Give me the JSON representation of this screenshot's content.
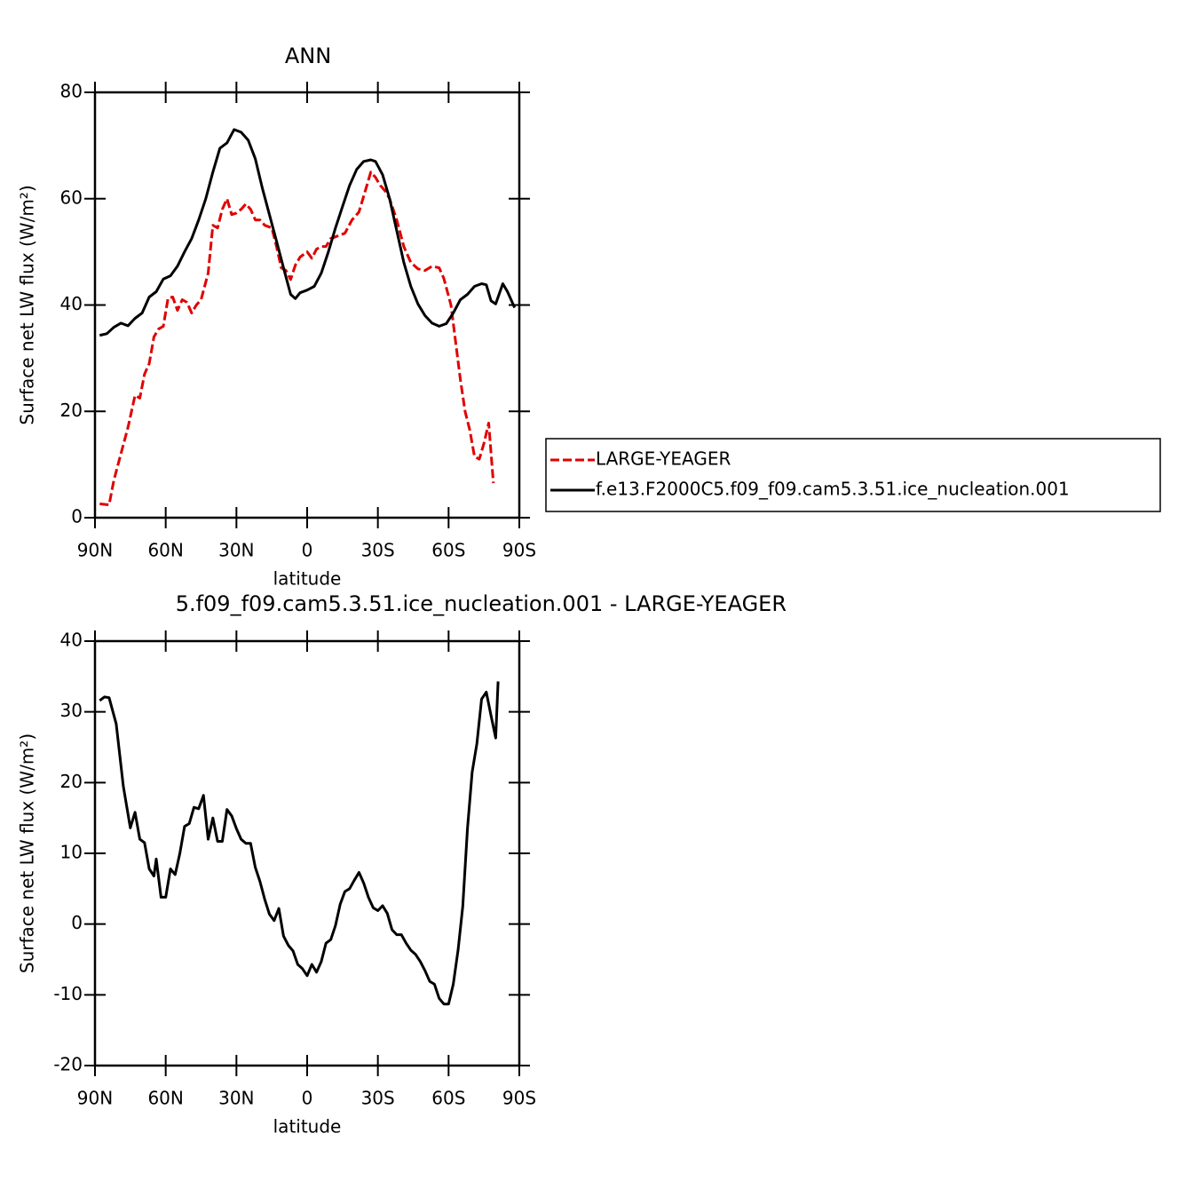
{
  "chart_data": [
    {
      "type": "line",
      "title": "ANN",
      "xlabel": "latitude",
      "ylabel": "Surface net LW flux (W/m²)",
      "xlim": [
        90,
        -90
      ],
      "xticks": [
        {
          "value": 90,
          "label": "90N"
        },
        {
          "value": 60,
          "label": "60N"
        },
        {
          "value": 30,
          "label": "30N"
        },
        0,
        {
          "value": -30,
          "label": "30S"
        },
        {
          "value": -60,
          "label": "60S"
        },
        {
          "value": -90,
          "label": "90S"
        }
      ],
      "ylim": [
        0,
        80
      ],
      "yticks": [
        0,
        20,
        40,
        60,
        80
      ],
      "legend": "right",
      "series": [
        {
          "name": "LARGE-YEAGER",
          "color": "#e00000",
          "linestyle": "dashed",
          "x": [
            88,
            86,
            84,
            82,
            79,
            76,
            73,
            71,
            69,
            67,
            65,
            63,
            61,
            59,
            57,
            55,
            53,
            51,
            49,
            47,
            45,
            42,
            40,
            38,
            36,
            34,
            32,
            30,
            28,
            26,
            24,
            22,
            20,
            18,
            15,
            13,
            11,
            9,
            7,
            5,
            3,
            0,
            -2,
            -4,
            -6,
            -8,
            -10,
            -13,
            -16,
            -19,
            -22,
            -25,
            -27,
            -29,
            -31,
            -33,
            -35,
            -38,
            -41,
            -44,
            -47,
            -50,
            -53,
            -56,
            -58,
            -61,
            -63,
            -65,
            -67,
            -69,
            -71,
            -73,
            -75,
            -77,
            -79
          ],
          "values": [
            2.6,
            2.5,
            2.4,
            7,
            12,
            17,
            23,
            22.5,
            27,
            29,
            34,
            35.5,
            36,
            41.3,
            41.5,
            39,
            41,
            40.5,
            38.5,
            40,
            41,
            46,
            55,
            54.5,
            58,
            60,
            57,
            57.3,
            58,
            59,
            58,
            56,
            56,
            55,
            54.5,
            51,
            47,
            46.5,
            44.8,
            47.5,
            49,
            50,
            48.8,
            50.5,
            51,
            51,
            52.5,
            53,
            53.5,
            56,
            57.5,
            62,
            65,
            64,
            62.5,
            61.5,
            60,
            56,
            51,
            48,
            46.8,
            46.5,
            47.3,
            47,
            45,
            40,
            33,
            26,
            20,
            16.5,
            11.5,
            11,
            14,
            17.8,
            6.5
          ]
        },
        {
          "name": "f.e13.F2000C5.f09_f09.cam5.3.51.ice_nucleation.001",
          "color": "#000000",
          "linestyle": "solid",
          "x": [
            88,
            85,
            82,
            79,
            76,
            73,
            70,
            67,
            64,
            61,
            58,
            55,
            52,
            49,
            46,
            43,
            40,
            37,
            34,
            31,
            28,
            25,
            22,
            19,
            16,
            13,
            10,
            7,
            5,
            3,
            0,
            -3,
            -6,
            -9,
            -12,
            -15,
            -18,
            -21,
            -24,
            -27,
            -29,
            -32,
            -35,
            -38,
            -41,
            -44,
            -47,
            -50,
            -53,
            -56,
            -59,
            -62,
            -65,
            -68,
            -71,
            -74,
            -76,
            -78,
            -80,
            -83,
            -85,
            -88
          ],
          "values": [
            34.3,
            34.6,
            35.8,
            36.6,
            36.1,
            37.5,
            38.5,
            41.5,
            42.5,
            44.9,
            45.5,
            47.3,
            50,
            52.5,
            56,
            60,
            65,
            69.5,
            70.5,
            73,
            72.5,
            71,
            67.5,
            62,
            57,
            52,
            47,
            42,
            41.2,
            42.3,
            42.8,
            43.5,
            46,
            50,
            54.5,
            58.5,
            62.5,
            65.5,
            67,
            67.3,
            67,
            64.5,
            60,
            54,
            48,
            43.5,
            40.2,
            38,
            36.6,
            36,
            36.5,
            38.5,
            41,
            42,
            43.5,
            44,
            43.8,
            40.8,
            40.2,
            44,
            42.5,
            39.5
          ]
        }
      ]
    },
    {
      "type": "line",
      "title": "5.f09_f09.cam5.3.51.ice_nucleation.001  -  LARGE-YEAGER",
      "xlabel": "latitude",
      "ylabel": "Surface net LW flux (W/m²)",
      "xlim": [
        90,
        -90
      ],
      "xticks": [
        {
          "value": 90,
          "label": "90N"
        },
        {
          "value": 60,
          "label": "60N"
        },
        {
          "value": 30,
          "label": "30N"
        },
        0,
        {
          "value": -30,
          "label": "30S"
        },
        {
          "value": -60,
          "label": "60S"
        },
        {
          "value": -90,
          "label": "90S"
        }
      ],
      "ylim": [
        -20,
        40
      ],
      "yticks": [
        -20,
        -10,
        0,
        10,
        20,
        30,
        40
      ],
      "color": "#000000",
      "x": [
        88,
        86,
        84,
        81,
        78,
        75,
        73,
        71,
        69,
        67,
        65,
        64,
        62,
        60,
        58,
        56,
        54,
        52,
        50,
        48,
        46,
        44,
        42,
        40,
        38,
        36,
        34,
        32,
        30,
        28,
        26,
        24,
        22,
        20,
        18,
        16,
        14,
        12,
        10,
        8,
        6,
        4,
        2,
        0,
        -2,
        -4,
        -6,
        -8,
        -10,
        -12,
        -14,
        -16,
        -18,
        -20,
        -22,
        -24,
        -26,
        -28,
        -30,
        -32,
        -34,
        -36,
        -38,
        -40,
        -42,
        -44,
        -46,
        -48,
        -50,
        -52,
        -54,
        -56,
        -58,
        -60,
        -62,
        -64,
        -66,
        -68,
        -70,
        -72,
        -74,
        -76,
        -78,
        -80,
        -81
      ],
      "values": [
        31.6,
        32.1,
        32,
        28.3,
        19.5,
        13.6,
        15.8,
        12,
        11.5,
        7.8,
        6.8,
        9.2,
        3.8,
        3.8,
        7.8,
        7,
        10,
        13.8,
        14.2,
        16.5,
        16.3,
        18.2,
        12,
        15,
        11.7,
        11.7,
        16.2,
        15.3,
        13.5,
        12,
        11.4,
        11.4,
        8,
        6,
        3.5,
        1.4,
        0.5,
        2.2,
        -1.7,
        -3,
        -3.8,
        -5.7,
        -6.3,
        -7.3,
        -5.7,
        -6.8,
        -5.3,
        -2.7,
        -2.2,
        -0.2,
        2.8,
        4.6,
        5,
        6.2,
        7.3,
        5.8,
        3.8,
        2.3,
        1.9,
        2.6,
        1.5,
        -0.8,
        -1.5,
        -1.5,
        -2.7,
        -3.7,
        -4.3,
        -5.3,
        -6.6,
        -8.1,
        -8.5,
        -10.5,
        -11.3,
        -11.3,
        -8.5,
        -3.7,
        2.5,
        13.5,
        21.5,
        25.5,
        31.8,
        32.8,
        29.5,
        26.3,
        34.3
      ]
    }
  ]
}
